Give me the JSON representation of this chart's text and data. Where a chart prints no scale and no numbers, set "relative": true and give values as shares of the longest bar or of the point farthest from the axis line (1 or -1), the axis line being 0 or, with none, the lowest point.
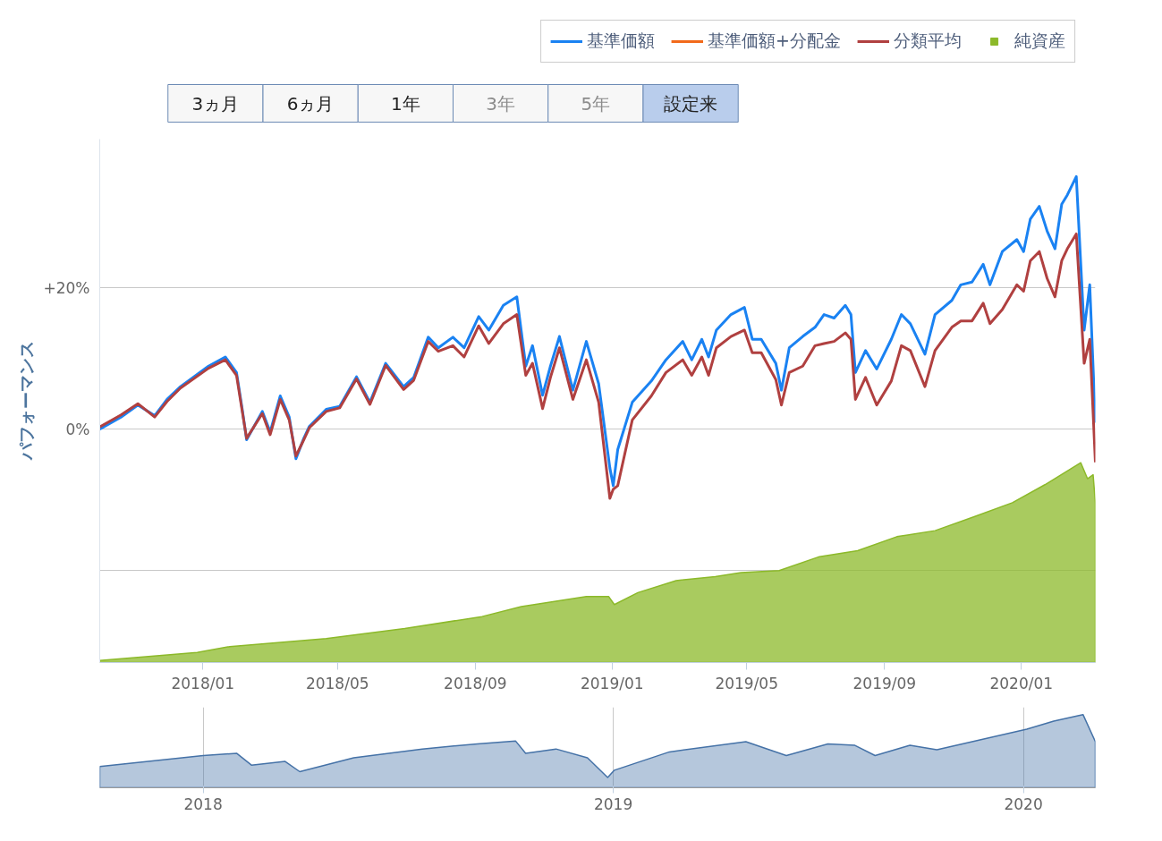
{
  "chart_data": [
    {
      "type": "line",
      "ylabel": "パフォーマンス",
      "xlim": [
        "2017-10-01",
        "2020-03-07"
      ],
      "ylim": [
        -33,
        41
      ],
      "xticks": [
        {
          "value": "2018-01",
          "label": "2018/01"
        },
        {
          "value": "2018-05",
          "label": "2018/05"
        },
        {
          "value": "2018-09",
          "label": "2018/09"
        },
        {
          "value": "2019-01",
          "label": "2019/01"
        },
        {
          "value": "2019-05",
          "label": "2019/05"
        },
        {
          "value": "2019-09",
          "label": "2019/09"
        },
        {
          "value": "2020-01",
          "label": "2020/01"
        }
      ],
      "yticks": [
        {
          "value": 20,
          "label": "+20%"
        },
        {
          "value": 0,
          "label": "0%"
        },
        {
          "value": -20,
          "label": null
        }
      ],
      "grid": "y",
      "legend": "top right",
      "annotations": [
        "3ヵ月",
        "6ヵ月",
        "1年",
        "3年",
        "5年",
        "設定来"
      ],
      "x": [
        "2017-10-01",
        "2017-10-20",
        "2017-11-04",
        "2017-11-19",
        "2017-11-30",
        "2017-12-12",
        "2018-01-06",
        "2018-01-21",
        "2018-01-31",
        "2018-02-05",
        "2018-02-09",
        "2018-02-23",
        "2018-03-02",
        "2018-03-11",
        "2018-03-19",
        "2018-03-25",
        "2018-04-01",
        "2018-04-06",
        "2018-04-21",
        "2018-05-03",
        "2018-05-18",
        "2018-05-30",
        "2018-06-13",
        "2018-06-29",
        "2018-07-08",
        "2018-07-21",
        "2018-07-30",
        "2018-08-12",
        "2018-08-22",
        "2018-09-04",
        "2018-09-13",
        "2018-09-26",
        "2018-10-08",
        "2018-10-16",
        "2018-10-22",
        "2018-10-31",
        "2018-11-07",
        "2018-11-15",
        "2018-11-27",
        "2018-12-09",
        "2018-12-20",
        "2018-12-30",
        "2019-01-02",
        "2019-01-06",
        "2019-01-19",
        "2019-02-05",
        "2019-02-18",
        "2019-03-05",
        "2019-03-13",
        "2019-03-22",
        "2019-03-28",
        "2019-04-04",
        "2019-04-17",
        "2019-04-29",
        "2019-05-06",
        "2019-05-14",
        "2019-05-27",
        "2019-06-01",
        "2019-06-08",
        "2019-06-20",
        "2019-07-01",
        "2019-07-09",
        "2019-07-18",
        "2019-07-28",
        "2019-08-02",
        "2019-08-06",
        "2019-08-15",
        "2019-08-25",
        "2019-09-07",
        "2019-09-16",
        "2019-09-24",
        "2019-10-07",
        "2019-10-16",
        "2019-10-31",
        "2019-11-08",
        "2019-11-18",
        "2019-11-28",
        "2019-12-04",
        "2019-12-15",
        "2019-12-28",
        "2020-01-03",
        "2020-01-09",
        "2020-01-17",
        "2020-01-24",
        "2020-01-31",
        "2020-02-06",
        "2020-02-11",
        "2020-02-19",
        "2020-02-26",
        "2020-03-02",
        "2020-03-07"
      ],
      "series": [
        {
          "name": "基準価額",
          "color": "#1a82f2",
          "values": [
            0.0,
            1.7,
            3.4,
            1.9,
            4.2,
            6.0,
            8.9,
            10.2,
            8.0,
            2.9,
            -1.5,
            2.5,
            -0.4,
            4.7,
            1.7,
            -4.2,
            -1.3,
            0.4,
            2.8,
            3.2,
            7.4,
            3.8,
            9.3,
            6.0,
            7.3,
            13.0,
            11.5,
            13.0,
            11.5,
            15.9,
            14.0,
            17.5,
            18.7,
            8.9,
            11.8,
            4.8,
            8.9,
            13.1,
            5.5,
            12.4,
            6.4,
            -5.5,
            -8.0,
            -2.9,
            3.8,
            6.8,
            9.8,
            12.4,
            9.8,
            12.7,
            10.2,
            14.0,
            16.2,
            17.2,
            12.7,
            12.7,
            9.3,
            5.5,
            11.5,
            13.1,
            14.4,
            16.2,
            15.7,
            17.5,
            16.2,
            8.0,
            11.1,
            8.5,
            12.7,
            16.2,
            14.9,
            10.6,
            16.2,
            18.2,
            20.4,
            20.8,
            23.3,
            20.4,
            25.1,
            26.8,
            25.1,
            29.7,
            31.5,
            28.0,
            25.5,
            31.8,
            33.1,
            35.7,
            14.0,
            20.4,
            0.9
          ]
        },
        {
          "name": "基準価額+分配金",
          "color": "#f26a1b",
          "values": [
            null,
            null,
            null,
            null,
            null,
            null,
            null,
            null,
            null,
            null,
            null,
            null,
            null,
            null,
            null,
            null,
            null,
            null,
            null,
            null,
            null,
            null,
            null,
            null,
            null,
            null,
            null,
            null,
            null,
            null,
            null,
            null,
            null,
            null,
            null,
            null,
            null,
            null,
            null,
            null,
            null,
            null,
            null,
            null,
            null,
            null,
            null,
            null,
            null,
            null,
            null,
            null,
            null,
            null,
            null,
            null,
            null,
            null,
            null,
            null,
            null,
            null,
            null,
            null,
            null,
            null,
            null,
            null,
            null,
            null,
            null,
            null,
            null,
            null,
            null,
            null,
            null,
            null,
            null,
            null,
            null,
            null,
            null,
            null,
            null,
            null,
            null,
            null,
            null,
            null,
            null
          ]
        },
        {
          "name": "分類平均",
          "color": "#b04040",
          "values": [
            0.3,
            2.0,
            3.6,
            1.7,
            3.9,
            5.8,
            8.6,
            9.8,
            7.6,
            2.6,
            -1.3,
            2.2,
            -0.8,
            4.2,
            1.3,
            -3.8,
            -1.5,
            0.2,
            2.5,
            3.0,
            7.1,
            3.5,
            9.0,
            5.6,
            6.9,
            12.4,
            11.0,
            11.8,
            10.2,
            14.6,
            12.1,
            14.9,
            16.2,
            7.6,
            9.3,
            2.9,
            7.3,
            11.5,
            4.2,
            9.8,
            3.8,
            -9.8,
            -8.5,
            -8.0,
            1.3,
            4.7,
            8.0,
            9.8,
            7.6,
            10.2,
            7.6,
            11.5,
            13.1,
            14.0,
            10.8,
            10.8,
            7.0,
            3.4,
            8.0,
            8.9,
            11.8,
            12.1,
            12.4,
            13.6,
            12.7,
            4.2,
            7.3,
            3.4,
            6.8,
            11.8,
            11.1,
            6.0,
            11.1,
            14.4,
            15.3,
            15.3,
            17.8,
            14.9,
            16.9,
            20.4,
            19.5,
            23.8,
            25.1,
            21.3,
            18.7,
            23.8,
            25.5,
            27.6,
            9.3,
            12.7,
            -4.7
          ]
        }
      ]
    },
    {
      "type": "area",
      "relative": true,
      "xlim": [
        "2017-10-01",
        "2020-03-07"
      ],
      "tick_labels": false,
      "x": [
        "2017-10-01",
        "2017-12-27",
        "2018-01-25",
        "2018-04-21",
        "2018-06-30",
        "2018-09-07",
        "2018-10-12",
        "2018-12-09",
        "2018-12-29",
        "2019-01-03",
        "2019-01-24",
        "2019-02-27",
        "2019-04-03",
        "2019-04-26",
        "2019-05-30",
        "2019-07-05",
        "2019-08-08",
        "2019-09-12",
        "2019-10-16",
        "2019-11-20",
        "2019-12-24",
        "2020-01-22",
        "2020-02-23",
        "2020-02-29",
        "2020-03-05",
        "2020-03-07"
      ],
      "series": [
        {
          "name": "純資産",
          "color": "#8cb92a",
          "values": [
            0.01,
            0.05,
            0.08,
            0.12,
            0.17,
            0.23,
            0.28,
            0.33,
            0.33,
            0.29,
            0.35,
            0.41,
            0.43,
            0.45,
            0.46,
            0.53,
            0.56,
            0.63,
            0.66,
            0.73,
            0.8,
            0.89,
            1.0,
            0.92,
            0.94,
            0.8
          ]
        }
      ]
    },
    {
      "type": "area",
      "relative": true,
      "xlim": [
        "2017-10-01",
        "2020-03-05"
      ],
      "xticks": [
        "2018",
        "2019",
        "2020"
      ],
      "grid": "x",
      "x": [
        "2017-10-01",
        "2018-01-01",
        "2018-01-31",
        "2018-02-13",
        "2018-03-15",
        "2018-03-28",
        "2018-05-15",
        "2018-07-15",
        "2018-09-02",
        "2018-10-06",
        "2018-10-15",
        "2018-11-11",
        "2018-12-09",
        "2018-12-27",
        "2019-01-02",
        "2019-02-20",
        "2019-04-29",
        "2019-06-04",
        "2019-07-11",
        "2019-08-04",
        "2019-08-22",
        "2019-09-22",
        "2019-10-16",
        "2020-01-04",
        "2020-01-28",
        "2020-02-23",
        "2020-03-05"
      ],
      "series": [
        {
          "color": "#4572a7",
          "values": [
            0.29,
            0.44,
            0.47,
            0.31,
            0.36,
            0.22,
            0.41,
            0.53,
            0.6,
            0.64,
            0.47,
            0.53,
            0.41,
            0.14,
            0.24,
            0.49,
            0.63,
            0.44,
            0.6,
            0.58,
            0.44,
            0.58,
            0.52,
            0.8,
            0.91,
            1.0,
            0.63
          ]
        }
      ]
    }
  ]
}
